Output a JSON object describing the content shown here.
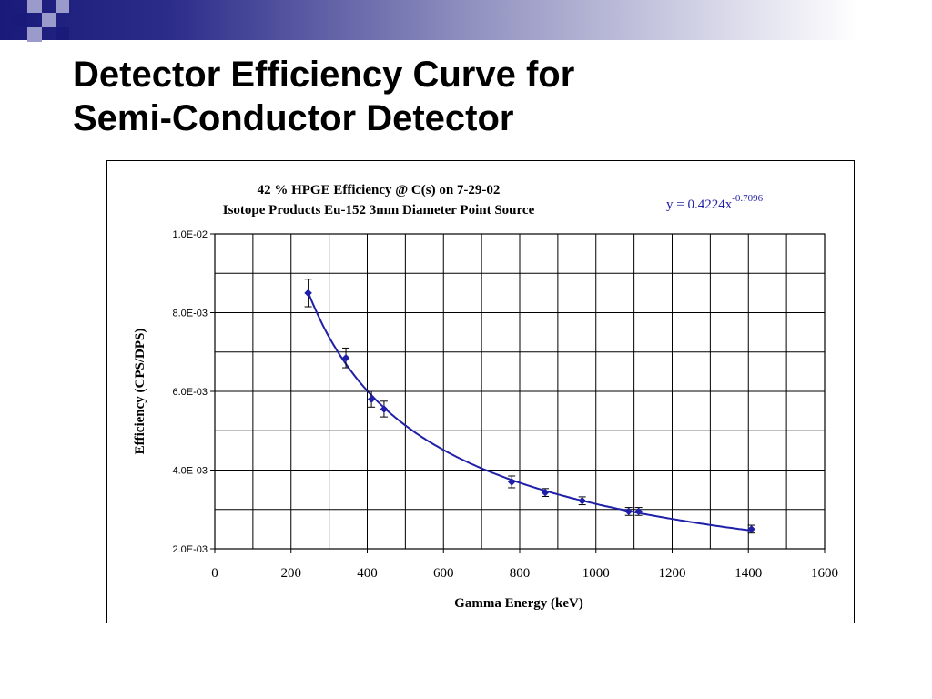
{
  "slide": {
    "title_line1": "Detector Efficiency Curve for",
    "title_line2": "Semi-Conductor Detector",
    "decor_colors": {
      "navy": "#1a1a7a",
      "lavender": "#9a9acb"
    }
  },
  "chart_data": {
    "type": "scatter",
    "title": "42 % HPGE Efficiency @ C(s) on 7-29-02",
    "subtitle": "Isotope Products Eu-152 3mm Diameter Point Source",
    "xlabel": "Gamma Energy (keV)",
    "ylabel": "Efficiency (CPS/DPS)",
    "xlim": [
      0,
      1600
    ],
    "ylim": [
      0.002,
      0.01
    ],
    "xticks": [
      0,
      200,
      400,
      600,
      800,
      1000,
      1200,
      1400,
      1600
    ],
    "xtick_labels": [
      "0",
      "200",
      "400",
      "600",
      "800",
      "1000",
      "1200",
      "1400",
      "1600"
    ],
    "yticks": [
      0.002,
      0.004,
      0.006,
      0.008,
      0.01
    ],
    "ytick_labels": [
      "2.0E-03",
      "4.0E-03",
      "6.0E-03",
      "8.0E-03",
      "1.0E-02"
    ],
    "grid": true,
    "points": [
      {
        "x": 245,
        "y": 0.0085,
        "err": 0.00035
      },
      {
        "x": 344,
        "y": 0.00685,
        "err": 0.00025
      },
      {
        "x": 411,
        "y": 0.0058,
        "err": 0.0002
      },
      {
        "x": 444,
        "y": 0.00555,
        "err": 0.0002
      },
      {
        "x": 779,
        "y": 0.0037,
        "err": 0.00015
      },
      {
        "x": 867,
        "y": 0.00343,
        "err": 0.0001
      },
      {
        "x": 964,
        "y": 0.00322,
        "err": 0.0001
      },
      {
        "x": 1086,
        "y": 0.00295,
        "err": 0.0001
      },
      {
        "x": 1112,
        "y": 0.00295,
        "err": 0.0001
      },
      {
        "x": 1408,
        "y": 0.0025,
        "err": 0.0001
      }
    ],
    "fit": {
      "type": "power",
      "coefficient": 0.4224,
      "exponent": -0.7096,
      "x_range": [
        245,
        1408
      ],
      "label_base": "y = 0.4224x",
      "label_exp": "-0.7096"
    },
    "colors": {
      "series": "#1f1fa8",
      "fit_label": "#1f1fa8",
      "grid": "#000000",
      "errorbar": "#000000"
    }
  }
}
